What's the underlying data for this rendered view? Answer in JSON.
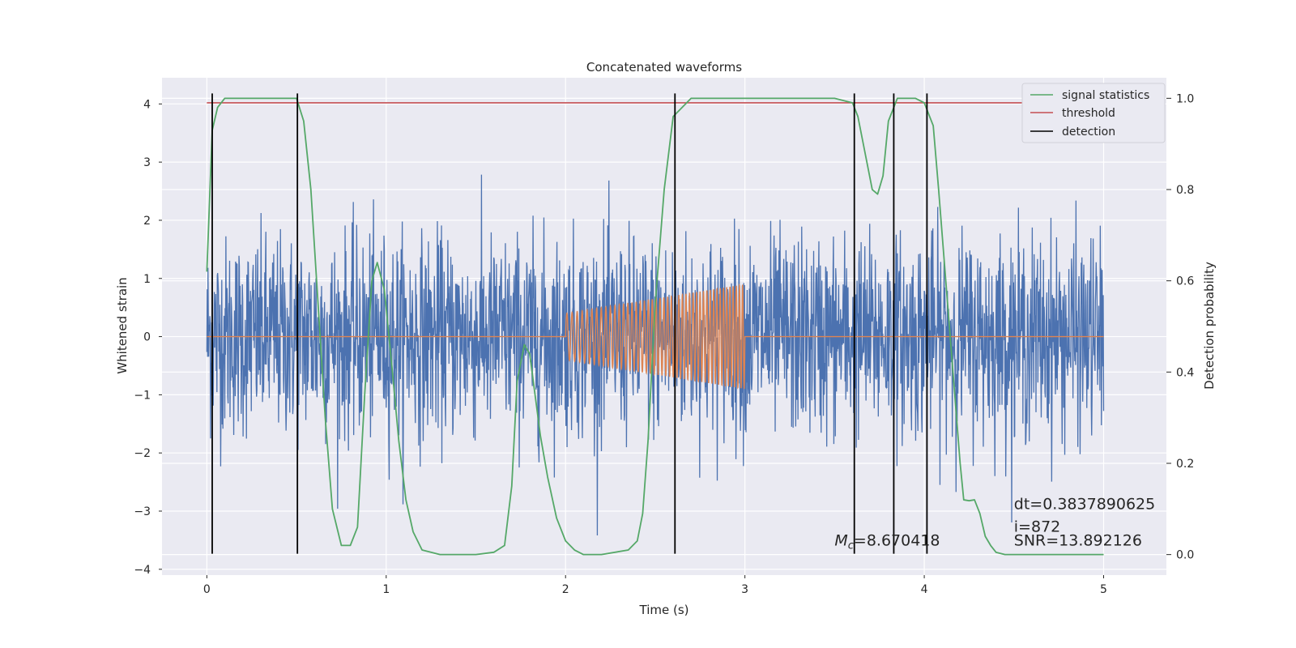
{
  "chart_data": {
    "type": "line",
    "title": "Concatenated waveforms",
    "xlabel": "Time (s)",
    "ylabel": "Whitened strain",
    "ylabel_right": "Detection probability",
    "xlim": [
      -0.25,
      5.35
    ],
    "ylim": [
      -4.1,
      4.45
    ],
    "ylim_right": [
      -0.045,
      1.045
    ],
    "xticks": [
      0,
      1,
      2,
      3,
      4,
      5
    ],
    "yticks": [
      -4,
      -3,
      -2,
      -1,
      0,
      1,
      2,
      3,
      4
    ],
    "yticks_right": [
      0.0,
      0.2,
      0.4,
      0.6,
      0.8,
      1.0
    ],
    "grid": true,
    "legend_placement": "upper right",
    "series": [
      {
        "name": "",
        "axis": "left",
        "kind": "noise",
        "color": "#4c72b0",
        "x_range": [
          0,
          5
        ],
        "typical_amplitude": 1.3,
        "peak_amplitude": 3.7
      },
      {
        "name": "",
        "axis": "left",
        "kind": "chirp",
        "color": "#dd8452",
        "x_range": [
          2,
          3
        ],
        "amplitude_start": 0.4,
        "amplitude_end": 0.9,
        "baseline": 0
      },
      {
        "name": "signal statistics",
        "axis": "right",
        "color": "#55a868",
        "x": [
          0.0,
          0.03,
          0.06,
          0.1,
          0.2,
          0.4,
          0.5,
          0.54,
          0.58,
          0.62,
          0.66,
          0.7,
          0.75,
          0.8,
          0.84,
          0.88,
          0.92,
          0.95,
          0.99,
          1.03,
          1.07,
          1.11,
          1.15,
          1.2,
          1.3,
          1.5,
          1.6,
          1.66,
          1.7,
          1.73,
          1.77,
          1.8,
          1.83,
          1.86,
          1.9,
          1.95,
          2.0,
          2.05,
          2.1,
          2.2,
          2.35,
          2.4,
          2.43,
          2.46,
          2.5,
          2.55,
          2.6,
          2.7,
          2.8,
          3.0,
          3.5,
          3.6,
          3.63,
          3.67,
          3.71,
          3.74,
          3.77,
          3.8,
          3.85,
          3.9,
          3.95,
          4.0,
          4.05,
          4.08,
          4.12,
          4.16,
          4.2,
          4.22,
          4.25,
          4.28,
          4.31,
          4.34,
          4.37,
          4.4,
          4.45,
          4.6,
          5.0
        ],
        "y": [
          0.62,
          0.93,
          0.98,
          1.0,
          1.0,
          1.0,
          1.0,
          0.95,
          0.8,
          0.55,
          0.3,
          0.1,
          0.02,
          0.02,
          0.06,
          0.35,
          0.6,
          0.64,
          0.58,
          0.42,
          0.25,
          0.12,
          0.05,
          0.01,
          0.0,
          0.0,
          0.005,
          0.02,
          0.15,
          0.38,
          0.46,
          0.44,
          0.35,
          0.26,
          0.17,
          0.08,
          0.03,
          0.01,
          0.0,
          0.0,
          0.01,
          0.03,
          0.09,
          0.25,
          0.55,
          0.8,
          0.96,
          1.0,
          1.0,
          1.0,
          1.0,
          0.99,
          0.96,
          0.88,
          0.8,
          0.79,
          0.83,
          0.95,
          1.0,
          1.0,
          1.0,
          0.99,
          0.94,
          0.8,
          0.6,
          0.4,
          0.2,
          0.12,
          0.118,
          0.12,
          0.09,
          0.04,
          0.02,
          0.005,
          0.0,
          0.0,
          0.0
        ]
      },
      {
        "name": "threshold",
        "axis": "right",
        "color": "#c44e52",
        "x": [
          0,
          5
        ],
        "y": [
          0.99,
          0.99
        ]
      },
      {
        "name": "detection",
        "axis": "right",
        "color": "#000000",
        "x_positions": [
          0.03,
          0.505,
          2.61,
          3.61,
          3.83,
          4.015
        ]
      }
    ],
    "annotations": [
      {
        "text": "dt=0.3837890625",
        "x": 4.5,
        "y": 0.1
      },
      {
        "text": " i=872",
        "x": 4.5,
        "y": 0.05
      },
      {
        "text_italic": "M",
        "text_sub": "c",
        "text": "=8.670418",
        "x": 3.5,
        "y": 0.02
      },
      {
        "text": "SNR=13.892126",
        "x": 4.5,
        "y": 0.02
      }
    ]
  }
}
